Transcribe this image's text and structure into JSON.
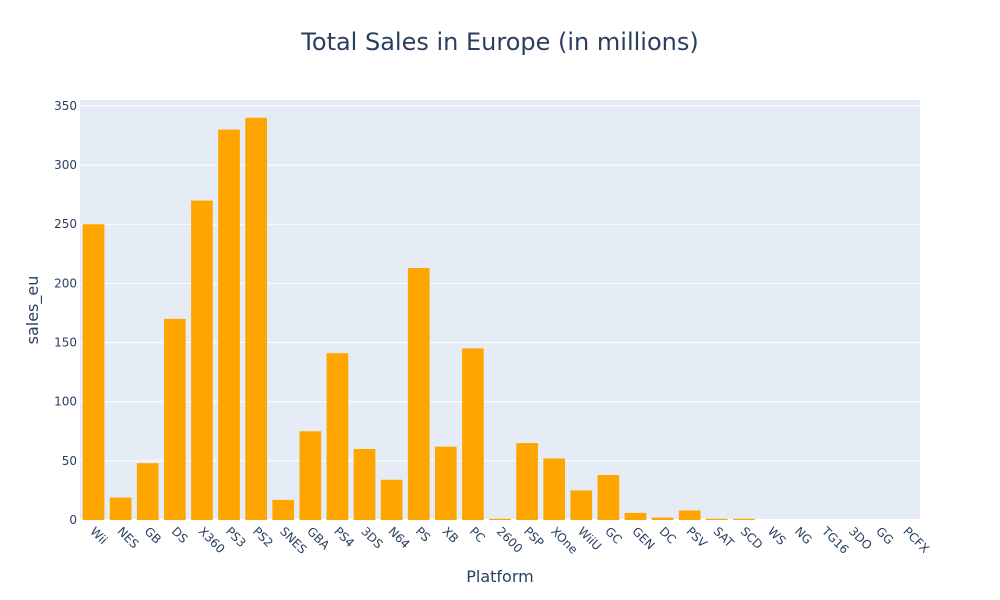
{
  "chart_data": {
    "type": "bar",
    "title": "Total Sales in Europe (in millions)",
    "xlabel": "Platform",
    "ylabel": "sales_eu",
    "ylim": [
      0,
      355
    ],
    "yticks": [
      0,
      50,
      100,
      150,
      200,
      250,
      300,
      350
    ],
    "grid": true,
    "bar_color": "#FFA500",
    "plot_bg_color": "#E5ECF6",
    "gridline_color": "#FFFFFF",
    "text_color": "#2a3f5f",
    "categories": [
      "Wii",
      "NES",
      "GB",
      "DS",
      "X360",
      "PS3",
      "PS2",
      "SNES",
      "GBA",
      "PS4",
      "3DS",
      "N64",
      "PS",
      "XB",
      "PC",
      "2600",
      "PSP",
      "XOne",
      "WiiU",
      "GC",
      "GEN",
      "DC",
      "PSV",
      "SAT",
      "SCD",
      "WS",
      "NG",
      "TG16",
      "3DO",
      "GG",
      "PCFX"
    ],
    "values": [
      250,
      19,
      48,
      170,
      270,
      330,
      340,
      17,
      75,
      141,
      60,
      34,
      213,
      62,
      145,
      1,
      65,
      52,
      25,
      38,
      6,
      2,
      8,
      1,
      1,
      0,
      0,
      0,
      0,
      0,
      0
    ]
  }
}
